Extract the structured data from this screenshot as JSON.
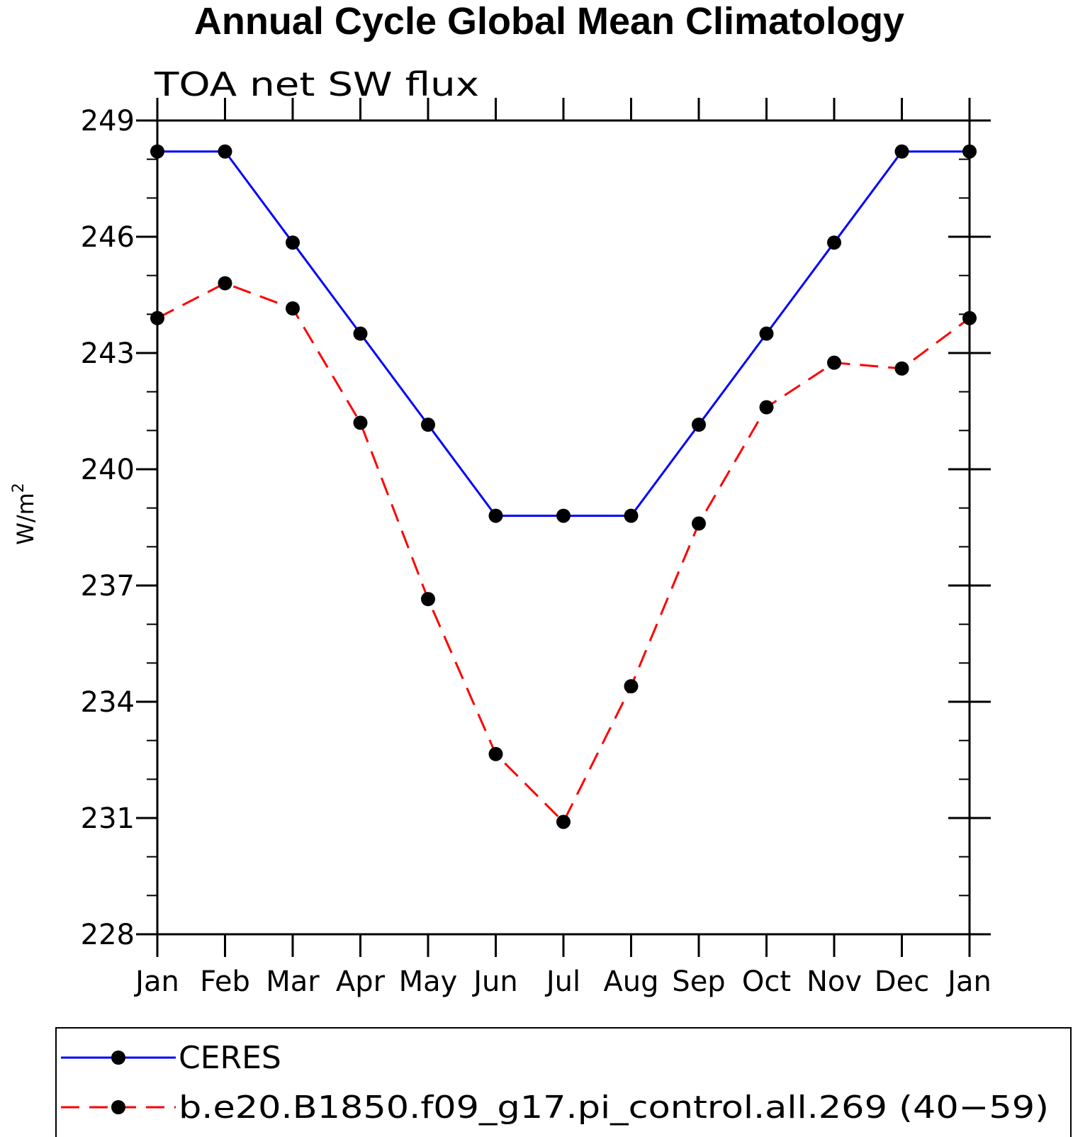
{
  "chart_data": {
    "type": "line",
    "title": "Annual Cycle Global Mean Climatology",
    "subtitle": "TOA net SW flux",
    "ylabel_base": "W/m",
    "ylabel_sup": "2",
    "xlabel": "",
    "categories": [
      "Jan",
      "Feb",
      "Mar",
      "Apr",
      "May",
      "Jun",
      "Jul",
      "Aug",
      "Sep",
      "Oct",
      "Nov",
      "Dec",
      "Jan"
    ],
    "ylim": [
      228,
      249
    ],
    "yticks": [
      228,
      231,
      234,
      237,
      240,
      243,
      246,
      249
    ],
    "grid": false,
    "legend_position": "bottom",
    "series": [
      {
        "name": "CERES",
        "color": "#0000ff",
        "dash": "solid",
        "values": [
          248.2,
          248.2,
          245.85,
          243.5,
          241.15,
          238.8,
          238.8,
          238.8,
          241.15,
          243.5,
          245.85,
          248.2,
          248.2
        ]
      },
      {
        "name": "b.e20.B1850.f09_g17.pi_control.all.269 (40−59)",
        "color": "#ff0000",
        "dash": "dashed",
        "values": [
          243.9,
          244.8,
          244.15,
          241.2,
          236.65,
          232.65,
          230.9,
          234.4,
          238.6,
          241.6,
          242.75,
          242.6,
          243.9
        ]
      }
    ]
  }
}
